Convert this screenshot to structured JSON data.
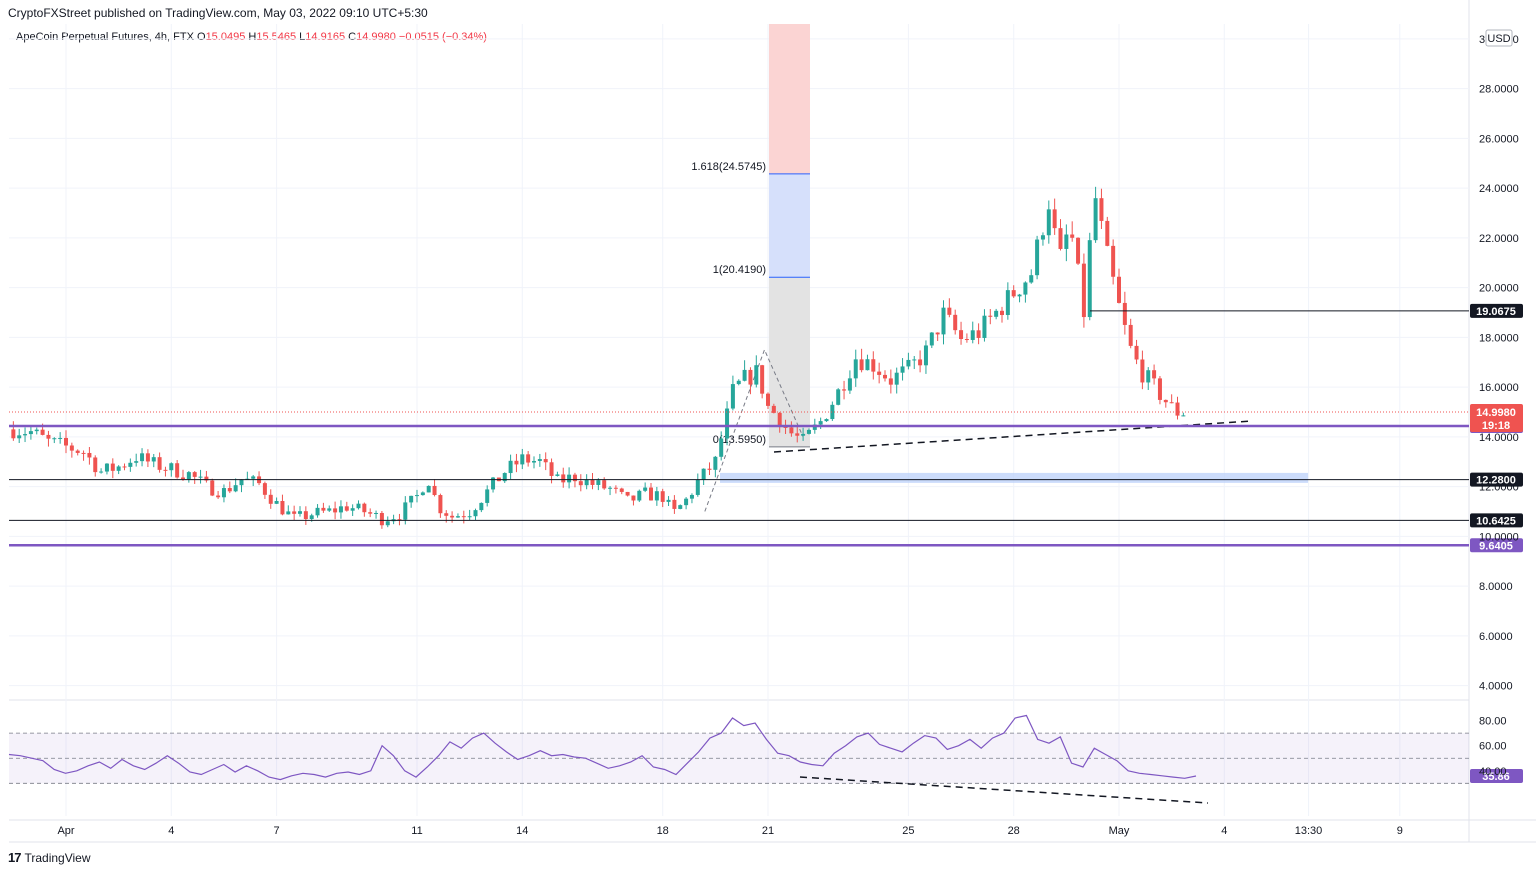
{
  "header": {
    "publisher": "CryptoFXStreet published on TradingView.com, May 03, 2022 09:10 UTC+5:30"
  },
  "legend": {
    "symbol": "ApeCoin Perpetual Futures, 4h, FTX",
    "o_label": "O",
    "o_value": "15.0495",
    "h_label": "H",
    "h_value": "15.5465",
    "l_label": "L",
    "l_value": "14.9165",
    "c_label": "C",
    "c_value": "14.9980",
    "change": "−0.0515 (−0.34%)"
  },
  "currency": "USD",
  "footer": {
    "logo": "17",
    "brand": "TradingView"
  },
  "colors": {
    "up": "#26a69a",
    "down": "#ef5350",
    "purple": "#7e57c2",
    "fibBlue": "#2962ff",
    "zone": "#bbd0fa"
  },
  "chart_data": {
    "type": "candlestick",
    "y_axis": {
      "min": 3.5,
      "max": 30.6,
      "ticks": [
        "4.0000",
        "6.0000",
        "8.0000",
        "10.0000",
        "12.0000",
        "14.0000",
        "16.0000",
        "18.0000",
        "20.0000",
        "22.0000",
        "24.0000",
        "26.0000",
        "28.0000",
        "30.0000"
      ]
    },
    "x_axis": {
      "ticks": [
        {
          "label": "Apr",
          "day": 0
        },
        {
          "label": "4",
          "day": 3
        },
        {
          "label": "7",
          "day": 6
        },
        {
          "label": "11",
          "day": 10
        },
        {
          "label": "14",
          "day": 13
        },
        {
          "label": "18",
          "day": 17
        },
        {
          "label": "21",
          "day": 20
        },
        {
          "label": "25",
          "day": 24
        },
        {
          "label": "28",
          "day": 27
        },
        {
          "label": "May",
          "day": 30
        },
        {
          "label": "4",
          "day": 33
        },
        {
          "label": "13:30",
          "day": 35.4
        },
        {
          "label": "9",
          "day": 38
        }
      ]
    },
    "candles_close_path": [
      [
        -1.5,
        14.3
      ],
      [
        -1.0,
        14.2
      ],
      [
        -0.5,
        13.8
      ],
      [
        0.0,
        13.6
      ],
      [
        0.5,
        13.4
      ],
      [
        1.0,
        12.6
      ],
      [
        1.5,
        12.8
      ],
      [
        2.0,
        13.2
      ],
      [
        2.5,
        12.9
      ],
      [
        3.0,
        12.7
      ],
      [
        3.5,
        12.5
      ],
      [
        4.0,
        12.0
      ],
      [
        4.5,
        11.8
      ],
      [
        5.0,
        12.3
      ],
      [
        5.5,
        12.1
      ],
      [
        6.0,
        11.3
      ],
      [
        6.5,
        10.7
      ],
      [
        7.0,
        10.9
      ],
      [
        7.5,
        11.0
      ],
      [
        8.0,
        11.2
      ],
      [
        8.5,
        11.0
      ],
      [
        9.0,
        10.7
      ],
      [
        9.5,
        10.9
      ],
      [
        10.0,
        11.6
      ],
      [
        10.3,
        12.4
      ],
      [
        10.6,
        11.2
      ],
      [
        11.0,
        10.8
      ],
      [
        11.5,
        11.0
      ],
      [
        12.0,
        11.8
      ],
      [
        12.5,
        12.6
      ],
      [
        13.0,
        13.1
      ],
      [
        13.5,
        13.0
      ],
      [
        14.0,
        12.2
      ],
      [
        14.5,
        12.4
      ],
      [
        15.0,
        12.1
      ],
      [
        15.5,
        11.9
      ],
      [
        16.0,
        11.4
      ],
      [
        16.5,
        11.7
      ],
      [
        17.0,
        11.6
      ],
      [
        17.3,
        10.9
      ],
      [
        17.7,
        11.5
      ],
      [
        18.0,
        12.2
      ],
      [
        18.5,
        13.0
      ],
      [
        19.0,
        15.8
      ],
      [
        19.3,
        16.3
      ],
      [
        19.7,
        16.6
      ],
      [
        20.0,
        15.2
      ],
      [
        20.3,
        14.8
      ],
      [
        20.6,
        14.2
      ],
      [
        21.0,
        13.8
      ],
      [
        21.5,
        14.6
      ],
      [
        22.0,
        15.8
      ],
      [
        22.5,
        17.2
      ],
      [
        23.0,
        16.9
      ],
      [
        23.5,
        16.3
      ],
      [
        24.0,
        16.7
      ],
      [
        24.5,
        17.4
      ],
      [
        25.0,
        18.9
      ],
      [
        25.5,
        17.9
      ],
      [
        26.0,
        18.2
      ],
      [
        26.5,
        19.0
      ],
      [
        27.0,
        19.8
      ],
      [
        27.5,
        20.6
      ],
      [
        28.0,
        23.5
      ],
      [
        28.3,
        21.0
      ],
      [
        28.6,
        22.5
      ],
      [
        29.0,
        19.0
      ],
      [
        29.3,
        23.8
      ],
      [
        29.6,
        21.6
      ],
      [
        30.0,
        19.2
      ],
      [
        30.3,
        17.6
      ],
      [
        30.6,
        16.7
      ],
      [
        31.0,
        16.0
      ],
      [
        31.3,
        15.5
      ],
      [
        31.6,
        15.0
      ],
      [
        32.0,
        15.0
      ]
    ],
    "horizontal_levels": [
      {
        "value": 19.0675,
        "label": "19.0675",
        "style": "black"
      },
      {
        "value": 14.436,
        "label": "14.4360",
        "style": "purple"
      },
      {
        "value": 12.28,
        "label": "12.2800",
        "style": "black"
      },
      {
        "value": 10.6425,
        "label": "10.6425",
        "style": "black"
      },
      {
        "value": 9.6405,
        "label": "9.6405",
        "style": "purple"
      }
    ],
    "last_price": {
      "value": 14.998,
      "label": "14.9980",
      "countdown": "19:18"
    },
    "fibonacci": [
      {
        "label": "1.618(24.5745)",
        "value": 24.5745
      },
      {
        "label": "1(20.4190)",
        "value": 20.419
      },
      {
        "label": "0(13.5950)",
        "value": 13.595
      }
    ],
    "demand_zone": {
      "from": 12.15,
      "to": 12.55
    },
    "rsi": {
      "ticks": [
        "40.00",
        "60.00",
        "80.00"
      ],
      "upper": 70,
      "mid": 50,
      "lower": 30,
      "last": "35.86",
      "values": [
        53,
        52,
        50,
        48,
        41,
        38,
        40,
        44,
        47,
        42,
        49,
        44,
        41,
        46,
        52,
        46,
        39,
        37,
        41,
        45,
        39,
        44,
        40,
        35,
        33,
        36,
        38,
        37,
        35,
        38,
        39,
        37,
        40,
        60,
        52,
        40,
        35,
        43,
        52,
        63,
        58,
        66,
        70,
        62,
        55,
        49,
        52,
        56,
        52,
        53,
        51,
        50,
        46,
        42,
        44,
        47,
        52,
        43,
        41,
        37,
        46,
        55,
        66,
        70,
        82,
        76,
        78,
        65,
        54,
        52,
        47,
        45,
        44,
        54,
        60,
        67,
        70,
        61,
        58,
        55,
        62,
        68,
        66,
        57,
        60,
        65,
        58,
        66,
        70,
        82,
        84,
        65,
        62,
        67,
        46,
        43,
        58,
        53,
        48,
        40,
        38,
        37,
        36,
        35,
        34,
        35.86
      ]
    }
  }
}
